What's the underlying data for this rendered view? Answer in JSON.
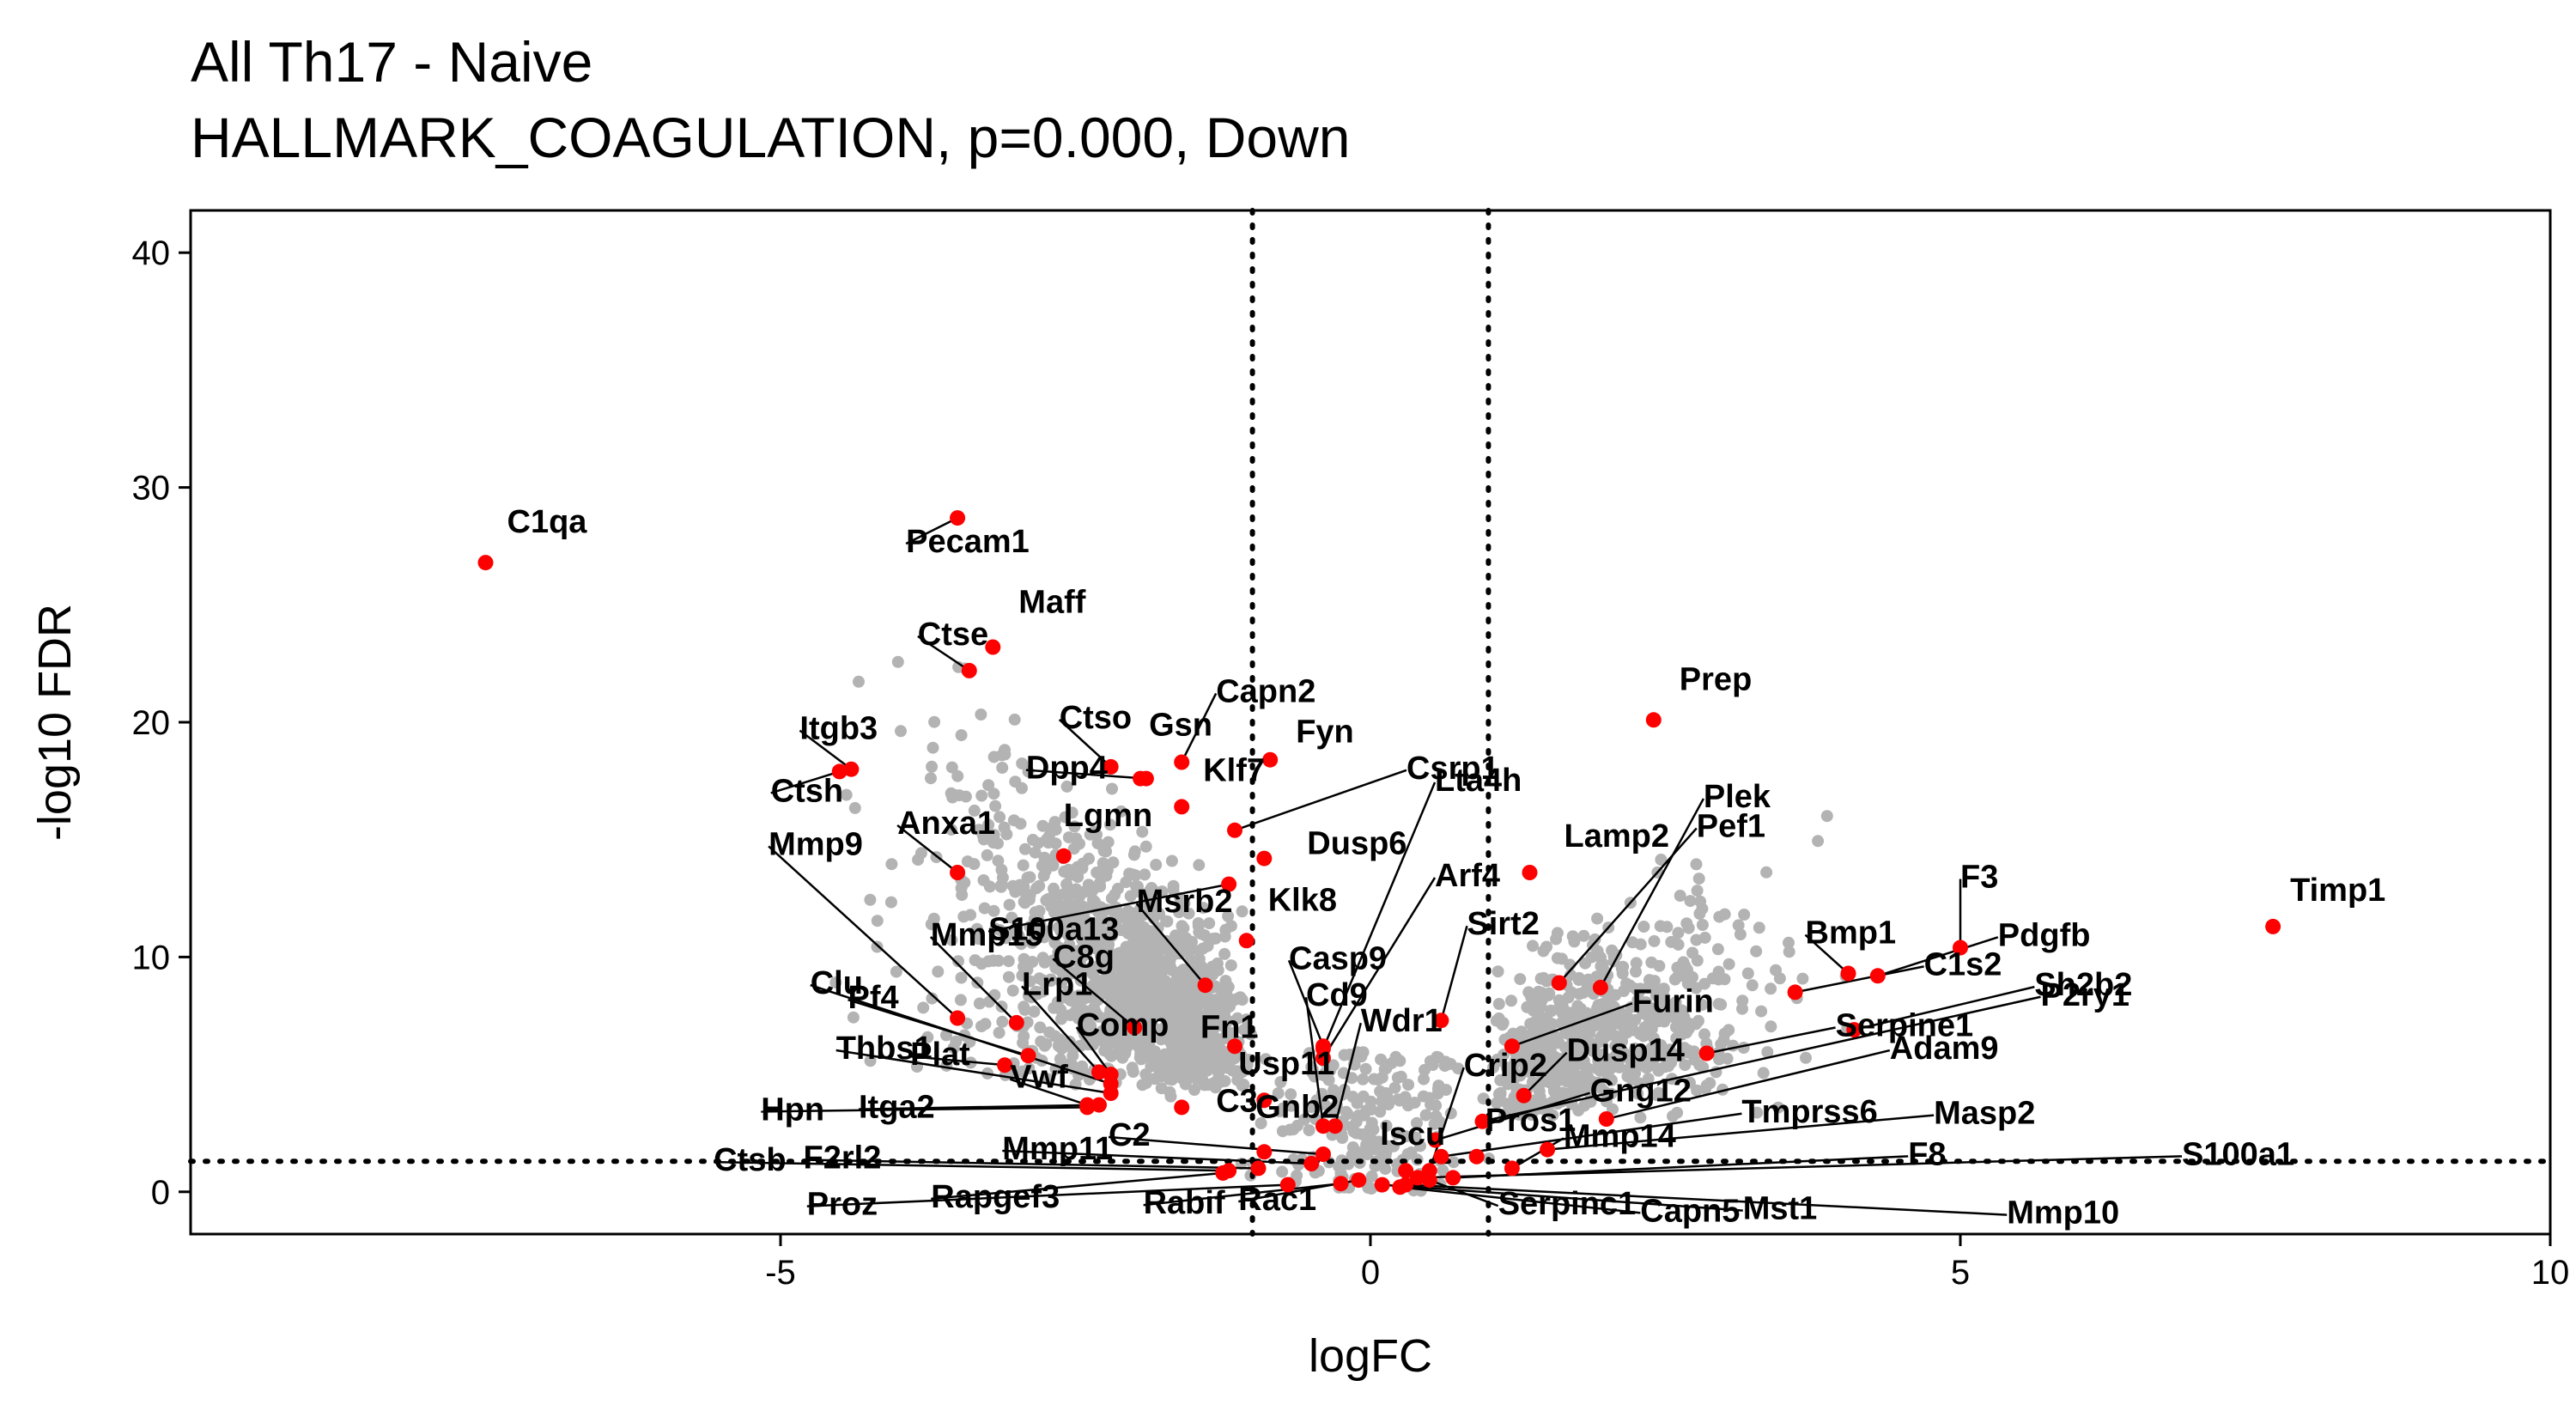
{
  "chart_data": {
    "type": "scatter",
    "title": "All Th17 - Naive",
    "subtitle": "HALLMARK_COAGULATION, p=0.000, Down",
    "xlabel": "logFC",
    "ylabel": "-log10 FDR",
    "xlim": [
      -10,
      10
    ],
    "ylim": [
      -1.8,
      41.8
    ],
    "xticks": [
      -5,
      0,
      5,
      10
    ],
    "xtick_labels": [
      "-5",
      "0",
      "5",
      "10"
    ],
    "yticks": [
      0,
      10,
      20,
      30,
      40
    ],
    "ytick_labels": [
      "0",
      "10",
      "20",
      "30",
      "40"
    ],
    "grid": false,
    "legend": "none",
    "thresholds": {
      "vertical": [
        -1,
        1
      ],
      "horizontal": [
        1.3
      ]
    },
    "colors": {
      "background_points": "#b3b3b3",
      "highlight_points": "#ff0000"
    },
    "background_points_generated": {
      "count": 2100,
      "seed": 7
    },
    "highlighted_genes": [
      {
        "gene": "C1qa",
        "x": -7.5,
        "y": 26.8
      },
      {
        "gene": "Pecam1",
        "x": -3.5,
        "y": 28.7
      },
      {
        "gene": "Maff",
        "x": -3.2,
        "y": 23.2
      },
      {
        "gene": "Ctse",
        "x": -3.4,
        "y": 22.2
      },
      {
        "gene": "Capn2",
        "x": -1.6,
        "y": 18.3
      },
      {
        "gene": "Ctso",
        "x": -2.2,
        "y": 18.1
      },
      {
        "gene": "Gsn",
        "x": -1.95,
        "y": 17.6
      },
      {
        "gene": "Itgb3",
        "x": -4.4,
        "y": 18.0
      },
      {
        "gene": "Ctsh",
        "x": -4.5,
        "y": 17.9
      },
      {
        "gene": "Dpp4",
        "x": -1.9,
        "y": 17.6
      },
      {
        "gene": "Klf7",
        "x": -1.6,
        "y": 16.4
      },
      {
        "gene": "Fyn",
        "x": -0.85,
        "y": 18.4
      },
      {
        "gene": "Csrp1",
        "x": -1.15,
        "y": 15.4
      },
      {
        "gene": "Dusp6",
        "x": -0.9,
        "y": 14.2
      },
      {
        "gene": "Anxa1",
        "x": -3.5,
        "y": 13.6
      },
      {
        "gene": "Lgmn",
        "x": -2.6,
        "y": 14.3
      },
      {
        "gene": "S100a13",
        "x": -1.2,
        "y": 13.1
      },
      {
        "gene": "Lta4h",
        "x": -0.4,
        "y": 6.1
      },
      {
        "gene": "Lamp2",
        "x": 1.35,
        "y": 13.6
      },
      {
        "gene": "Prep",
        "x": 2.4,
        "y": 20.1
      },
      {
        "gene": "Mmp9",
        "x": -3.5,
        "y": 7.4
      },
      {
        "gene": "Msrb2",
        "x": -1.4,
        "y": 8.8
      },
      {
        "gene": "Klk8",
        "x": -1.05,
        "y": 10.7
      },
      {
        "gene": "Arf4",
        "x": -0.4,
        "y": 5.7
      },
      {
        "gene": "Pef1",
        "x": 1.6,
        "y": 8.9
      },
      {
        "gene": "Plek",
        "x": 1.95,
        "y": 8.7
      },
      {
        "gene": "F3",
        "x": 5.0,
        "y": 10.4
      },
      {
        "gene": "Timp1",
        "x": 7.65,
        "y": 11.3
      },
      {
        "gene": "Mmp15",
        "x": -3.0,
        "y": 7.2
      },
      {
        "gene": "C8g",
        "x": -2.0,
        "y": 7.0
      },
      {
        "gene": "Casp9",
        "x": -0.4,
        "y": 6.2
      },
      {
        "gene": "Sirt2",
        "x": 0.6,
        "y": 7.3
      },
      {
        "gene": "Furin",
        "x": 1.2,
        "y": 6.2
      },
      {
        "gene": "Bmp1",
        "x": 4.05,
        "y": 9.3
      },
      {
        "gene": "Pdgfb",
        "x": 4.3,
        "y": 9.2
      },
      {
        "gene": "Lrp1",
        "x": -2.3,
        "y": 5.1
      },
      {
        "gene": "Clu",
        "x": -2.2,
        "y": 4.6
      },
      {
        "gene": "Pf4",
        "x": -2.9,
        "y": 5.8
      },
      {
        "gene": "Comp",
        "x": -2.2,
        "y": 5.0
      },
      {
        "gene": "Fn1",
        "x": -1.15,
        "y": 6.2
      },
      {
        "gene": "Cd9",
        "x": -0.4,
        "y": 2.8
      },
      {
        "gene": "Gng12",
        "x": 0.55,
        "y": 2.2
      },
      {
        "gene": "Serpine1",
        "x": 2.85,
        "y": 5.9
      },
      {
        "gene": "C1s2",
        "x": 3.6,
        "y": 8.5
      },
      {
        "gene": "Sh2b2",
        "x": 4.1,
        "y": 6.9
      },
      {
        "gene": "Thbs1",
        "x": -2.2,
        "y": 4.2
      },
      {
        "gene": "Plat",
        "x": -3.1,
        "y": 5.4
      },
      {
        "gene": "Usp11",
        "x": -0.9,
        "y": 3.9
      },
      {
        "gene": "Crip2",
        "x": 0.5,
        "y": 0.9
      },
      {
        "gene": "Dusp14",
        "x": 1.3,
        "y": 4.1
      },
      {
        "gene": "Adam9",
        "x": 2.0,
        "y": 3.1
      },
      {
        "gene": "P2ry1",
        "x": 0.95,
        "y": 3.0
      },
      {
        "gene": "Hpn",
        "x": -2.4,
        "y": 3.6
      },
      {
        "gene": "Itga2",
        "x": -2.3,
        "y": 3.7
      },
      {
        "gene": "Vwf",
        "x": -2.4,
        "y": 3.7
      },
      {
        "gene": "C3",
        "x": -1.6,
        "y": 3.6
      },
      {
        "gene": "Wdr1",
        "x": -0.3,
        "y": 2.8
      },
      {
        "gene": "Tmprss6",
        "x": 0.6,
        "y": 1.5
      },
      {
        "gene": "Gnb2",
        "x": -0.9,
        "y": 1.7
      },
      {
        "gene": "Pros1",
        "x": 0.9,
        "y": 1.5
      },
      {
        "gene": "Masp2",
        "x": 1.5,
        "y": 1.8
      },
      {
        "gene": "Ctsb",
        "x": -1.2,
        "y": 0.9
      },
      {
        "gene": "F2rl2",
        "x": -0.95,
        "y": 1.0
      },
      {
        "gene": "Mmp11",
        "x": -0.5,
        "y": 1.2
      },
      {
        "gene": "C2",
        "x": -0.4,
        "y": 1.6
      },
      {
        "gene": "Iscu",
        "x": 0.3,
        "y": 0.9
      },
      {
        "gene": "Mmp14",
        "x": 1.2,
        "y": 1.0
      },
      {
        "gene": "F8",
        "x": 0.7,
        "y": 0.6
      },
      {
        "gene": "S100a1",
        "x": 0.4,
        "y": 0.6
      },
      {
        "gene": "Proz",
        "x": -0.7,
        "y": 0.3
      },
      {
        "gene": "Rapgef3",
        "x": -1.25,
        "y": 0.8
      },
      {
        "gene": "Rabif",
        "x": -0.25,
        "y": 0.35
      },
      {
        "gene": "Rac1",
        "x": -0.1,
        "y": 0.5
      },
      {
        "gene": "Serpinc1",
        "x": 0.5,
        "y": 0.5
      },
      {
        "gene": "Capn5",
        "x": 0.25,
        "y": 0.2
      },
      {
        "gene": "Mst1",
        "x": 0.1,
        "y": 0.3
      },
      {
        "gene": "Mmp10",
        "x": 0.3,
        "y": 0.3
      }
    ]
  }
}
